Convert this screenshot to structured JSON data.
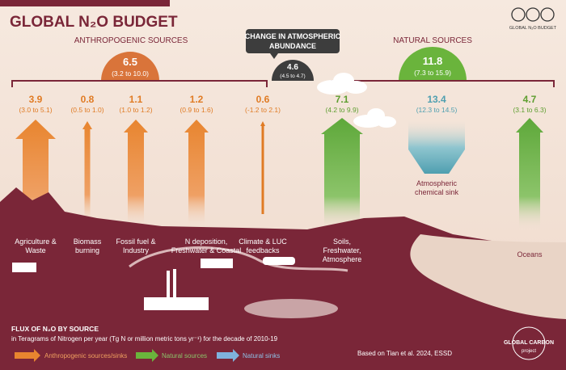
{
  "header": {
    "title": "GLOBAL N₂O BUDGET",
    "license_badge": "GLOBAL N₂O BUDGET"
  },
  "groups": {
    "anthropogenic": {
      "title": "ANTHROPOGENIC SOURCES",
      "total": "6.5",
      "range": "(3.2 to 10.0)"
    },
    "atmosphere": {
      "title": [
        "CHANGE IN ATMOSPHERIC",
        "ABUNDANCE"
      ],
      "total": "4.6",
      "range": "(4.5 to 4.7)"
    },
    "natural": {
      "title": "NATURAL SOURCES",
      "total": "11.8",
      "range": "(7.3 to 15.9)"
    }
  },
  "fluxes": [
    {
      "value": "3.9",
      "range": "(3.0 to 5.1)",
      "label": [
        "Agriculture &",
        "Waste"
      ]
    },
    {
      "value": "0.8",
      "range": "(0.5 to 1.0)",
      "label": [
        "Biomass",
        "burning"
      ]
    },
    {
      "value": "1.1",
      "range": "(1.0 to 1.2)",
      "label": [
        "Fossil fuel &",
        "Industry"
      ]
    },
    {
      "value": "1.2",
      "range": "(0.9 to 1.6)",
      "label": [
        "N deposition,",
        "Freshwater & Coastal"
      ]
    },
    {
      "value": "0.6",
      "range": "(-1.2 to 2.1)",
      "label": [
        "Climate & LUC",
        "feedbacks"
      ]
    },
    {
      "value": "7.1",
      "range": "(4.2 to 9.9)",
      "label": [
        "Soils,",
        "Freshwater,",
        "Atmosphere"
      ]
    },
    {
      "value": "13.4",
      "range": "(12.3 to 14.5)",
      "label": [
        "Atmospheric",
        "chemical sink"
      ]
    },
    {
      "value": "4.7",
      "range": "(3.1 to 6.3)",
      "label": [
        "Oceans"
      ]
    }
  ],
  "footer": {
    "title": "FLUX OF N₂O BY SOURCE",
    "subtitle": "in Teragrams of Nitrogen per year (Tg N or million metric tons yr⁻¹) for the decade of 2010-19",
    "legend": [
      "Anthropogenic sources/sinks",
      "Natural sources",
      "Natural sinks"
    ],
    "citation": "Based on Tian et al. 2024, ESSD",
    "logo": [
      "GLOBAL CARBON",
      "project"
    ]
  }
}
